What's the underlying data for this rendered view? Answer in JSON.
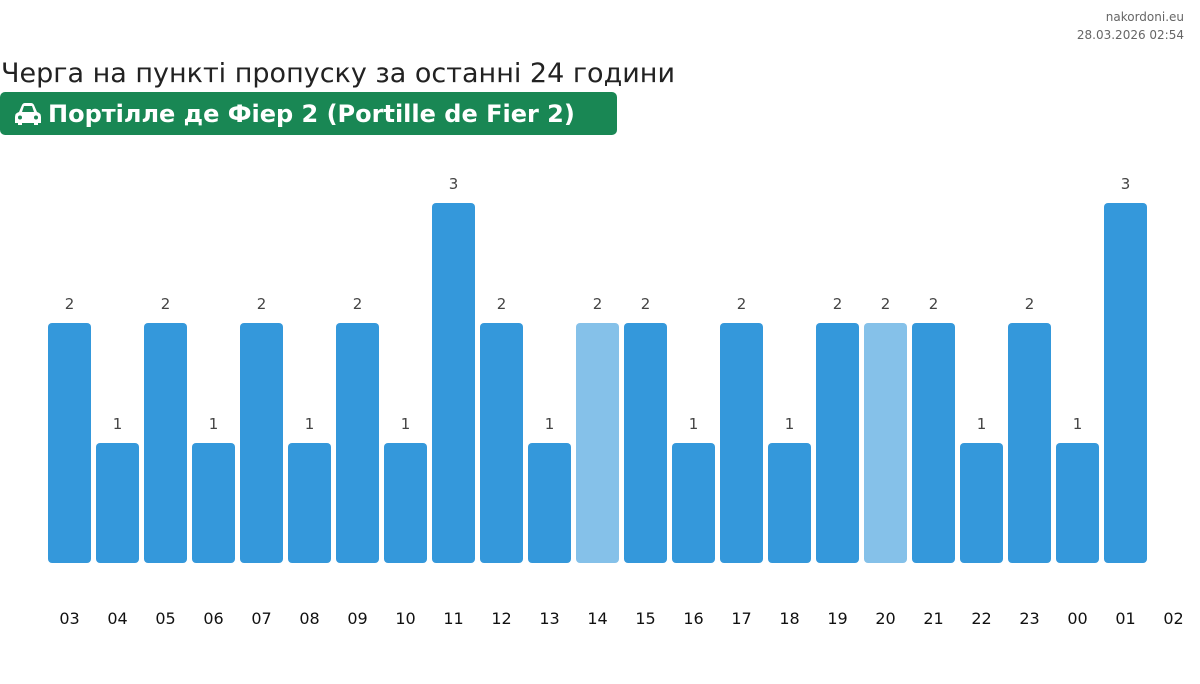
{
  "source": {
    "site": "nakordoni.eu",
    "timestamp": "28.03.2026 02:54"
  },
  "title": "Черга на пункті пропуску за останні 24 години",
  "checkpoint": {
    "icon": "car-icon",
    "name": "Портілле де Фіер 2 (Portille de Fier 2)",
    "color": "#198754"
  },
  "chart_data": {
    "type": "bar",
    "title": "Черга на пункті пропуску за останні 24 години",
    "categories": [
      "03",
      "04",
      "05",
      "06",
      "07",
      "08",
      "09",
      "10",
      "11",
      "12",
      "13",
      "14",
      "15",
      "16",
      "17",
      "18",
      "19",
      "20",
      "21",
      "22",
      "23",
      "00",
      "01",
      "02"
    ],
    "values": [
      2,
      1,
      2,
      1,
      2,
      1,
      2,
      1,
      3,
      2,
      1,
      2,
      2,
      1,
      2,
      1,
      2,
      2,
      2,
      1,
      2,
      1,
      3,
      null
    ],
    "highlighted": [
      false,
      false,
      false,
      false,
      false,
      false,
      false,
      false,
      false,
      false,
      false,
      true,
      false,
      false,
      false,
      false,
      false,
      true,
      false,
      false,
      false,
      false,
      false,
      false
    ],
    "colors": {
      "bar": "#3498db",
      "highlight": "#85c1e9"
    },
    "ylim": [
      0,
      3
    ],
    "xlabel": "",
    "ylabel": "",
    "grid": false
  }
}
